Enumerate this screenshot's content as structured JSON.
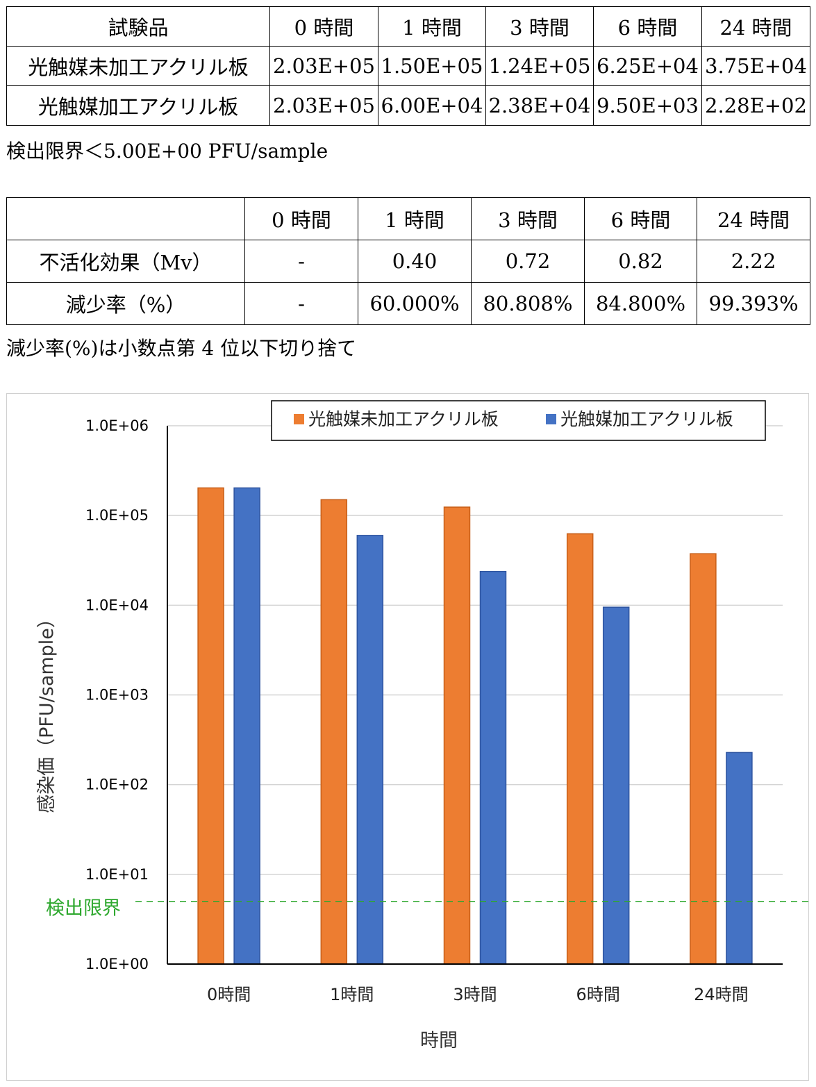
{
  "table1": {
    "headers": [
      "試験品",
      "0 時間",
      "1 時間",
      "3 時間",
      "6 時間",
      "24 時間"
    ],
    "rows": [
      [
        "光触媒未加工アクリル板",
        "2.03E+05",
        "1.50E+05",
        "1.24E+05",
        "6.25E+04",
        "3.75E+04"
      ],
      [
        "光触媒加工アクリル板",
        "2.03E+05",
        "6.00E+04",
        "2.38E+04",
        "9.50E+03",
        "2.28E+02"
      ]
    ]
  },
  "note1": "検出限界＜5.00E+00 PFU/sample",
  "table2": {
    "headers": [
      "",
      "0 時間",
      "1 時間",
      "3 時間",
      "6 時間",
      "24 時間"
    ],
    "rows": [
      [
        "不活化効果（Mv）",
        "-",
        "0.40",
        "0.72",
        "0.82",
        "2.22"
      ],
      [
        "減少率（%）",
        "-",
        "60.000%",
        "80.808%",
        "84.800%",
        "99.393%"
      ]
    ]
  },
  "note2": "減少率(%)は小数点第 4 位以下切り捨て",
  "chart_data": {
    "type": "bar",
    "xlabel": "時間",
    "ylabel": "感染価（PFU/sample）",
    "y_scale": "log",
    "ylim": [
      1,
      1000000
    ],
    "ytick_labels": [
      "1.0E+00",
      "1.0E+01",
      "1.0E+02",
      "1.0E+03",
      "1.0E+04",
      "1.0E+05",
      "1.0E+06"
    ],
    "categories": [
      "0時間",
      "1時間",
      "3時間",
      "6時間",
      "24時間"
    ],
    "series": [
      {
        "name": "光触媒未加工アクリル板",
        "color": "#ED7D31",
        "values": [
          203000,
          150000,
          124000,
          62500,
          37500
        ]
      },
      {
        "name": "光触媒加工アクリル板",
        "color": "#4472C4",
        "values": [
          203000,
          60000,
          23800,
          9500,
          228
        ]
      }
    ],
    "reference_line": {
      "label": "検出限界",
      "value": 5,
      "color": "#2EA82E"
    },
    "legend_position": "top-right",
    "grid": true
  }
}
